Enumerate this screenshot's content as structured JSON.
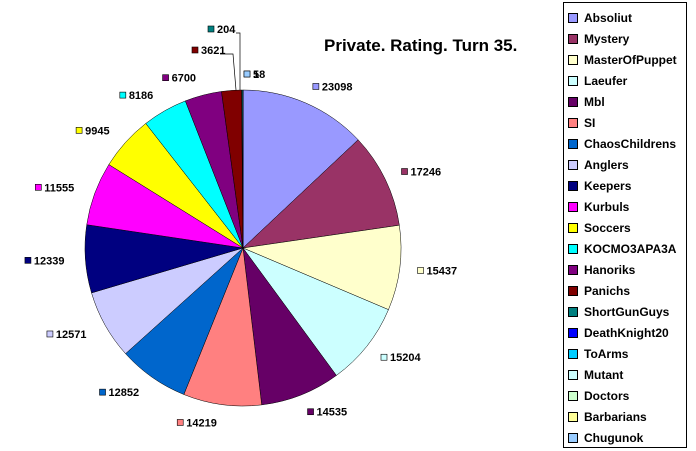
{
  "chart_data": {
    "type": "pie",
    "title": "Private. Rating. Turn 35.",
    "legend_position": "right",
    "categories": [
      "Absoliut",
      "Mystery",
      "MasterOfPuppet",
      "Laeufer",
      "Mbl",
      "SI",
      "ChaosChildrens",
      "Anglers",
      "Keepers",
      "Kurbuls",
      "Soccers",
      "KOCMO3APA3A",
      "Hanoriks",
      "Panichs",
      "ShortGunGuys",
      "DeathKnight20",
      "ToArms",
      "Mutant",
      "Doctors",
      "Barbarians",
      "Chugunok"
    ],
    "values": [
      23098,
      17246,
      15437,
      15204,
      14535,
      14219,
      12852,
      12571,
      12339,
      11555,
      9945,
      8186,
      6700,
      3621,
      204,
      18,
      5,
      5,
      5,
      5,
      5
    ],
    "data_labels": [
      "23098",
      "17246",
      "15437",
      "15204",
      "14535",
      "14219",
      "12852",
      "12571",
      "12339",
      "11555",
      "9945",
      "8186",
      "6700",
      "3621",
      "204",
      "18",
      "",
      "",
      "",
      "",
      "5"
    ],
    "colors": [
      "#9999FF",
      "#993366",
      "#FFFFCC",
      "#CCFFFF",
      "#660066",
      "#FF8080",
      "#0066CC",
      "#CCCCFF",
      "#000080",
      "#FF00FF",
      "#FFFF00",
      "#00FFFF",
      "#800080",
      "#800000",
      "#008080",
      "#0000FF",
      "#00CCFF",
      "#CCFFFF",
      "#CCFFCC",
      "#FFFF99",
      "#99CCFF"
    ]
  }
}
